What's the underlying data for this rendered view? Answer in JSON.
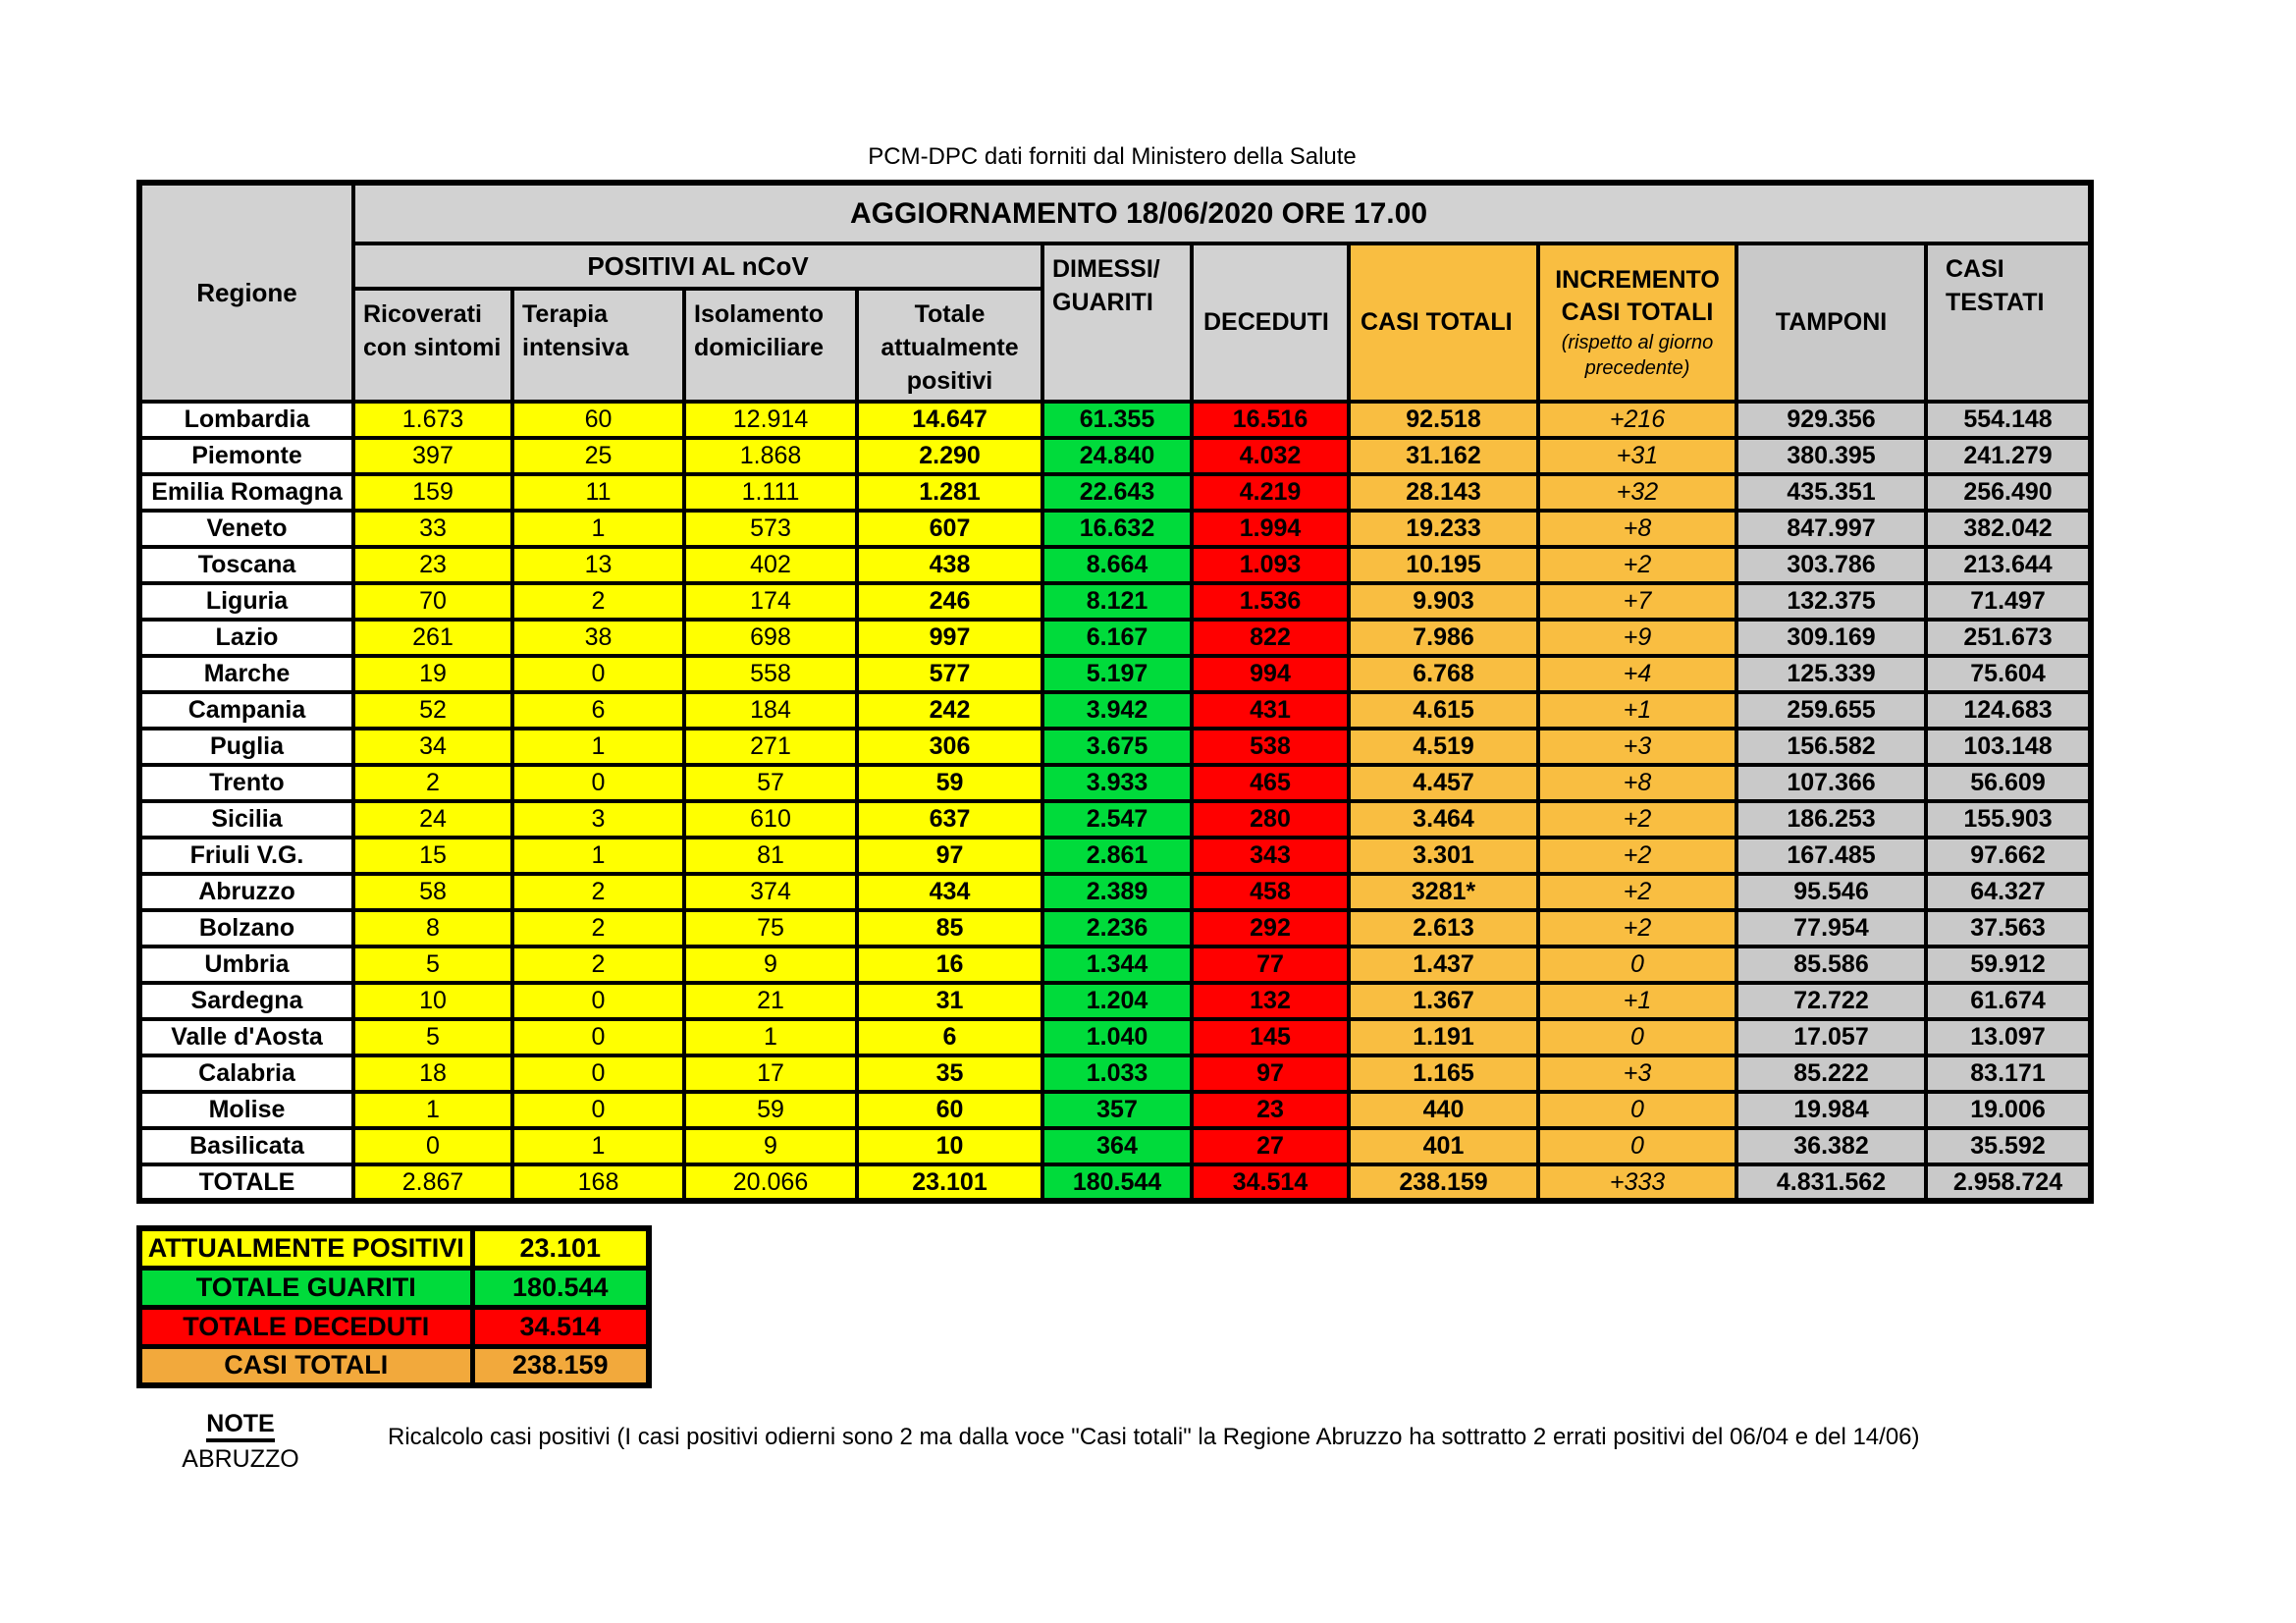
{
  "page": {
    "source_caption": "PCM-DPC dati forniti dal Ministero della Salute",
    "title": "AGGIORNAMENTO 18/06/2020 ORE 17.00"
  },
  "colors": {
    "header_gray": "#D2D2D2",
    "cell_gray": "#C9C9C9",
    "yellow": "#FFFF00",
    "green": "#00DB3B",
    "red": "#FF0000",
    "orange": "#F9BE41",
    "summary_orange": "#F2A93C",
    "border": "#000000"
  },
  "table": {
    "headers": {
      "region": "Regione",
      "positives_group": "POSITIVI AL nCoV",
      "sub_ricoverati": "Ricoverati con sintomi",
      "sub_terapia": "Terapia intensiva",
      "sub_isolamento": "Isolamento domiciliare",
      "sub_totale_positivi": "Totale attualmente positivi",
      "dimessi_line1": "DIMESSI/",
      "dimessi_line2": "GUARITI",
      "deceduti": "DECEDUTI",
      "casi_totali": "CASI TOTALI",
      "incremento_line1": "INCREMENTO",
      "incremento_line2": "CASI  TOTALI",
      "incremento_note": "(rispetto al giorno precedente)",
      "tamponi": "TAMPONI",
      "casi_testati_line1": "CASI",
      "casi_testati_line2": "TESTATI"
    },
    "rows": [
      {
        "region": "Lombardia",
        "values": [
          "1.673",
          "60",
          "12.914",
          "14.647",
          "61.355",
          "16.516",
          "92.518",
          "+216",
          "929.356",
          "554.148"
        ]
      },
      {
        "region": "Piemonte",
        "values": [
          "397",
          "25",
          "1.868",
          "2.290",
          "24.840",
          "4.032",
          "31.162",
          "+31",
          "380.395",
          "241.279"
        ]
      },
      {
        "region": "Emilia Romagna",
        "values": [
          "159",
          "11",
          "1.111",
          "1.281",
          "22.643",
          "4.219",
          "28.143",
          "+32",
          "435.351",
          "256.490"
        ]
      },
      {
        "region": "Veneto",
        "values": [
          "33",
          "1",
          "573",
          "607",
          "16.632",
          "1.994",
          "19.233",
          "+8",
          "847.997",
          "382.042"
        ]
      },
      {
        "region": "Toscana",
        "values": [
          "23",
          "13",
          "402",
          "438",
          "8.664",
          "1.093",
          "10.195",
          "+2",
          "303.786",
          "213.644"
        ]
      },
      {
        "region": "Liguria",
        "values": [
          "70",
          "2",
          "174",
          "246",
          "8.121",
          "1.536",
          "9.903",
          "+7",
          "132.375",
          "71.497"
        ]
      },
      {
        "region": "Lazio",
        "values": [
          "261",
          "38",
          "698",
          "997",
          "6.167",
          "822",
          "7.986",
          "+9",
          "309.169",
          "251.673"
        ]
      },
      {
        "region": "Marche",
        "values": [
          "19",
          "0",
          "558",
          "577",
          "5.197",
          "994",
          "6.768",
          "+4",
          "125.339",
          "75.604"
        ]
      },
      {
        "region": "Campania",
        "values": [
          "52",
          "6",
          "184",
          "242",
          "3.942",
          "431",
          "4.615",
          "+1",
          "259.655",
          "124.683"
        ]
      },
      {
        "region": "Puglia",
        "values": [
          "34",
          "1",
          "271",
          "306",
          "3.675",
          "538",
          "4.519",
          "+3",
          "156.582",
          "103.148"
        ]
      },
      {
        "region": "Trento",
        "values": [
          "2",
          "0",
          "57",
          "59",
          "3.933",
          "465",
          "4.457",
          "+8",
          "107.366",
          "56.609"
        ]
      },
      {
        "region": "Sicilia",
        "values": [
          "24",
          "3",
          "610",
          "637",
          "2.547",
          "280",
          "3.464",
          "+2",
          "186.253",
          "155.903"
        ]
      },
      {
        "region": "Friuli V.G.",
        "values": [
          "15",
          "1",
          "81",
          "97",
          "2.861",
          "343",
          "3.301",
          "+2",
          "167.485",
          "97.662"
        ]
      },
      {
        "region": "Abruzzo",
        "values": [
          "58",
          "2",
          "374",
          "434",
          "2.389",
          "458",
          "3281*",
          "+2",
          "95.546",
          "64.327"
        ]
      },
      {
        "region": "Bolzano",
        "values": [
          "8",
          "2",
          "75",
          "85",
          "2.236",
          "292",
          "2.613",
          "+2",
          "77.954",
          "37.563"
        ]
      },
      {
        "region": "Umbria",
        "values": [
          "5",
          "2",
          "9",
          "16",
          "1.344",
          "77",
          "1.437",
          "0",
          "85.586",
          "59.912"
        ]
      },
      {
        "region": "Sardegna",
        "values": [
          "10",
          "0",
          "21",
          "31",
          "1.204",
          "132",
          "1.367",
          "+1",
          "72.722",
          "61.674"
        ]
      },
      {
        "region": "Valle d'Aosta",
        "values": [
          "5",
          "0",
          "1",
          "6",
          "1.040",
          "145",
          "1.191",
          "0",
          "17.057",
          "13.097"
        ]
      },
      {
        "region": "Calabria",
        "values": [
          "18",
          "0",
          "17",
          "35",
          "1.033",
          "97",
          "1.165",
          "+3",
          "85.222",
          "83.171"
        ]
      },
      {
        "region": "Molise",
        "values": [
          "1",
          "0",
          "59",
          "60",
          "357",
          "23",
          "440",
          "0",
          "19.984",
          "19.006"
        ]
      },
      {
        "region": "Basilicata",
        "values": [
          "0",
          "1",
          "9",
          "10",
          "364",
          "27",
          "401",
          "0",
          "36.382",
          "35.592"
        ]
      },
      {
        "region": "TOTALE",
        "values": [
          "2.867",
          "168",
          "20.066",
          "23.101",
          "180.544",
          "34.514",
          "238.159",
          "+333",
          "4.831.562",
          "2.958.724"
        ]
      }
    ]
  },
  "summary": [
    {
      "label": "ATTUALMENTE POSITIVI",
      "value": "23.101",
      "color": "#FFFF00"
    },
    {
      "label": "TOTALE GUARITI",
      "value": "180.544",
      "color": "#00DB3B"
    },
    {
      "label": "TOTALE DECEDUTI",
      "value": "34.514",
      "color": "#FF0000"
    },
    {
      "label": "CASI TOTALI",
      "value": "238.159",
      "color": "#F2A93C"
    }
  ],
  "notes": {
    "heading": "NOTE",
    "region": "ABRUZZO",
    "text": "Ricalcolo casi positivi (I casi positivi odierni sono 2 ma dalla voce \"Casi totali\" la Regione Abruzzo ha sottratto  2 errati positivi del 06/04 e del 14/06)"
  }
}
